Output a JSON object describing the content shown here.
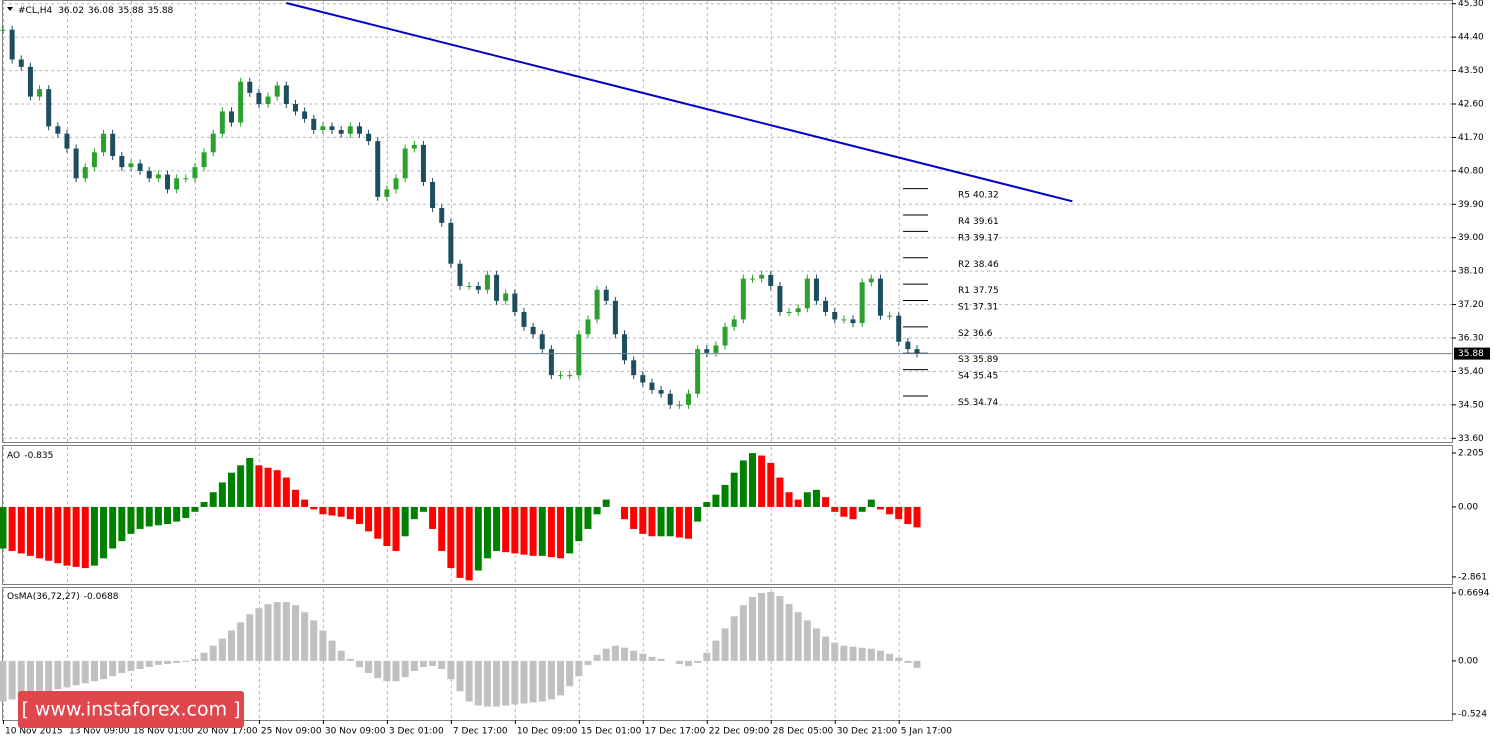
{
  "chart_data": [
    {
      "type": "candlestick",
      "title": "#CL,H4",
      "ohlc": [
        36.02,
        36.08,
        35.88,
        35.88
      ],
      "categories": [
        "10 Nov 2015",
        null,
        null,
        null,
        null,
        null,
        null,
        "13 Nov 09:00",
        null,
        null,
        null,
        null,
        null,
        null,
        "18 Nov 01:00",
        null,
        null,
        null,
        null,
        null,
        null,
        "20 Nov 17:00",
        null,
        null,
        null,
        null,
        null,
        null,
        "25 Nov 09:00",
        null,
        null,
        null,
        null,
        null,
        null,
        "30 Nov 09:00",
        null,
        null,
        null,
        null,
        null,
        null,
        "3 Dec 01:00",
        null,
        null,
        null,
        null,
        null,
        null,
        "7 Dec 17:00",
        null,
        null,
        null,
        null,
        null,
        null,
        "10 Dec 09:00",
        null,
        null,
        null,
        null,
        null,
        null,
        "15 Dec 01:00",
        null,
        null,
        null,
        null,
        null,
        null,
        "17 Dec 17:00",
        null,
        null,
        null,
        null,
        null,
        null,
        "22 Dec 09:00",
        null,
        null,
        null,
        null,
        null,
        null,
        "28 Dec 05:00",
        null,
        null,
        null,
        null,
        null,
        null,
        "30 Dec 21:00",
        null,
        null,
        null,
        null,
        null,
        null,
        "5 Jan 17:00",
        null,
        null
      ],
      "closes": [
        44.6,
        43.8,
        43.6,
        42.8,
        43.0,
        42.0,
        41.8,
        41.4,
        40.6,
        40.9,
        41.3,
        41.8,
        41.2,
        40.9,
        41.0,
        40.8,
        40.6,
        40.7,
        40.3,
        40.6,
        40.6,
        40.9,
        41.3,
        41.8,
        42.4,
        42.1,
        43.2,
        42.9,
        42.6,
        42.8,
        43.1,
        42.6,
        42.4,
        42.2,
        41.9,
        42.0,
        41.9,
        41.8,
        42.0,
        41.8,
        41.6,
        40.1,
        40.3,
        40.6,
        41.4,
        41.5,
        40.5,
        39.8,
        39.4,
        38.3,
        37.7,
        37.7,
        37.6,
        38.0,
        37.3,
        37.5,
        37.0,
        36.6,
        36.4,
        36.0,
        35.3,
        35.3,
        35.3,
        36.4,
        36.8,
        37.6,
        37.3,
        36.4,
        35.7,
        35.3,
        35.1,
        34.9,
        34.8,
        34.5,
        34.5,
        34.8,
        36.0,
        35.9,
        36.1,
        36.6,
        36.8,
        37.9,
        37.9,
        38.0,
        37.7,
        37.0,
        37.0,
        37.1,
        37.9,
        37.3,
        37.0,
        36.8,
        36.8,
        36.7,
        37.8,
        37.9,
        36.9,
        36.9,
        36.2,
        36.0,
        35.88
      ],
      "up_color": "#2ca02c",
      "down_color": "#1d4e5e",
      "ylim": [
        33.5,
        45.4
      ],
      "yticks": [
        {
          "value": 45.3,
          "label": "45.30"
        },
        {
          "value": 44.4,
          "label": "44.40"
        },
        {
          "value": 43.5,
          "label": "43.50"
        },
        {
          "value": 42.6,
          "label": "42.60"
        },
        {
          "value": 41.7,
          "label": "41.70"
        },
        {
          "value": 40.8,
          "label": "40.80"
        },
        {
          "value": 39.9,
          "label": "39.90"
        },
        {
          "value": 39.0,
          "label": "39.00"
        },
        {
          "value": 38.1,
          "label": "38.10"
        },
        {
          "value": 37.2,
          "label": "37.20"
        },
        {
          "value": 36.3,
          "label": "36.30"
        },
        {
          "value": 35.4,
          "label": "35.40"
        },
        {
          "value": 34.5,
          "label": "34.50"
        },
        {
          "value": 33.6,
          "label": "33.60"
        }
      ],
      "grid": true,
      "trendline": {
        "x": [
          31,
          117
        ],
        "y": [
          45.32,
          39.98
        ],
        "color": "#0000c8"
      },
      "pivots": [
        {
          "name": "R5",
          "value": 40.32
        },
        {
          "name": "R4",
          "value": 39.61
        },
        {
          "name": "R3",
          "value": 39.17
        },
        {
          "name": "R2",
          "value": 38.46
        },
        {
          "name": "R1",
          "value": 37.75
        },
        {
          "name": "S1",
          "value": 37.31
        },
        {
          "name": "S2",
          "value": 36.6
        },
        {
          "name": "S3",
          "value": 35.89
        },
        {
          "name": "S4",
          "value": 35.45
        },
        {
          "name": "S5",
          "value": 34.74
        }
      ]
    },
    {
      "type": "bar",
      "title": "AO",
      "up_color": "#008000",
      "down_color": "#ff0000",
      "values": [
        -1.7,
        -1.8,
        -1.9,
        -2.0,
        -2.1,
        -2.2,
        -2.3,
        -2.4,
        -2.45,
        -2.5,
        -2.4,
        -2.1,
        -1.7,
        -1.4,
        -1.1,
        -0.9,
        -0.8,
        -0.75,
        -0.7,
        -0.6,
        -0.45,
        -0.2,
        0.2,
        0.6,
        1.0,
        1.4,
        1.7,
        2.0,
        1.7,
        1.6,
        1.5,
        1.2,
        0.7,
        0.3,
        -0.1,
        -0.3,
        -0.35,
        -0.4,
        -0.5,
        -0.7,
        -1.0,
        -1.3,
        -1.6,
        -1.8,
        -1.2,
        -0.5,
        -0.2,
        -0.9,
        -1.8,
        -2.5,
        -2.9,
        -3.0,
        -2.6,
        -2.1,
        -1.8,
        -1.85,
        -1.9,
        -1.95,
        -2.0,
        -2.0,
        -2.05,
        -2.1,
        -1.9,
        -1.4,
        -0.9,
        -0.3,
        0.3,
        0.0,
        -0.5,
        -0.9,
        -1.1,
        -1.2,
        -1.2,
        -1.2,
        -1.25,
        -1.3,
        -0.6,
        0.2,
        0.5,
        0.9,
        1.4,
        1.9,
        2.2,
        2.1,
        1.8,
        1.2,
        0.6,
        0.3,
        0.6,
        0.7,
        0.4,
        -0.2,
        -0.4,
        -0.5,
        -0.2,
        0.3,
        -0.1,
        -0.3,
        -0.5,
        -0.7,
        -0.835
      ],
      "ylim": [
        -3.15,
        2.49
      ],
      "yticks": [
        2.205,
        {
          "value": 0,
          "label": "0.00"
        },
        -2.861
      ]
    },
    {
      "type": "bar",
      "title": "OsMA(36,72,27)",
      "color": "#c0c0c0",
      "values": [
        -0.4,
        -0.38,
        -0.36,
        -0.34,
        -0.32,
        -0.3,
        -0.28,
        -0.26,
        -0.24,
        -0.22,
        -0.2,
        -0.18,
        -0.15,
        -0.12,
        -0.1,
        -0.08,
        -0.06,
        -0.04,
        -0.03,
        -0.02,
        -0.01,
        0.02,
        0.08,
        0.15,
        0.22,
        0.3,
        0.38,
        0.46,
        0.52,
        0.56,
        0.58,
        0.58,
        0.55,
        0.48,
        0.4,
        0.3,
        0.2,
        0.1,
        0.02,
        -0.06,
        -0.12,
        -0.17,
        -0.2,
        -0.2,
        -0.16,
        -0.1,
        -0.06,
        -0.05,
        -0.08,
        -0.18,
        -0.3,
        -0.4,
        -0.44,
        -0.45,
        -0.45,
        -0.44,
        -0.43,
        -0.42,
        -0.41,
        -0.4,
        -0.38,
        -0.34,
        -0.25,
        -0.15,
        -0.04,
        0.06,
        0.12,
        0.15,
        0.13,
        0.1,
        0.07,
        0.04,
        0.02,
        0.0,
        -0.03,
        -0.05,
        -0.02,
        0.08,
        0.2,
        0.32,
        0.44,
        0.55,
        0.63,
        0.67,
        0.68,
        0.64,
        0.56,
        0.48,
        0.4,
        0.32,
        0.24,
        0.18,
        0.15,
        0.14,
        0.13,
        0.12,
        0.1,
        0.07,
        0.03,
        -0.02,
        -0.0688
      ],
      "ylim": [
        -0.583,
        0.719
      ],
      "yticks": [
        0.6694,
        {
          "value": 0,
          "label": "0.00"
        },
        -0.524
      ]
    }
  ],
  "watermark": "[  www.instaforex.com ]"
}
